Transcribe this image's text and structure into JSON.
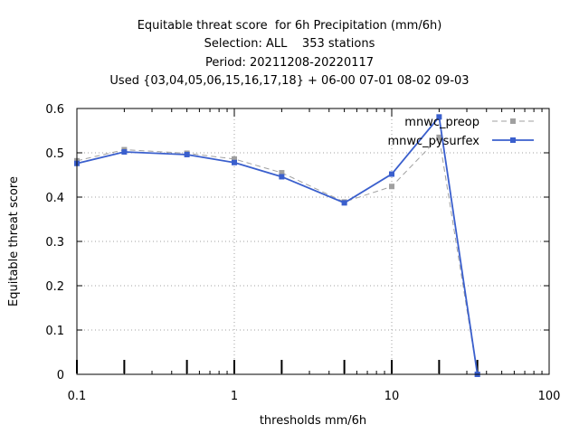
{
  "chart_data": {
    "type": "line",
    "title": [
      "Equitable threat score  for 6h Precipitation (mm/6h)",
      "Selection: ALL    353 stations",
      "Period: 20211208-20220117",
      "Used {03,04,05,06,15,16,17,18} + 06-00 07-01 08-02 09-03"
    ],
    "xlabel": "thresholds mm/6h",
    "ylabel": "Equitable threat score",
    "xscale": "log",
    "xlim": [
      0.1,
      100
    ],
    "ylim": [
      0,
      0.6
    ],
    "xticks": [
      0.1,
      1,
      10,
      100
    ],
    "xtick_labels": [
      "0.1",
      "1",
      "10",
      "100"
    ],
    "yticks": [
      0,
      0.1,
      0.2,
      0.3,
      0.4,
      0.5,
      0.6
    ],
    "ytick_labels": [
      "0",
      "0.1",
      "0.2",
      "0.3",
      "0.4",
      "0.5",
      "0.6"
    ],
    "threshold_marks": [
      0.1,
      0.2,
      0.5,
      1,
      2,
      5,
      10,
      20,
      35
    ],
    "grid": true,
    "legend_position": "top-right",
    "x": [
      0.1,
      0.2,
      0.5,
      1,
      2,
      5,
      10,
      20,
      35
    ],
    "series": [
      {
        "name": "mnwc_preop",
        "values": [
          0.482,
          0.507,
          0.499,
          0.486,
          0.455,
          0.389,
          0.424,
          0.535,
          0.0
        ],
        "color": "#a0a0a0",
        "style": "dashed"
      },
      {
        "name": "mnwc_pysurfex",
        "values": [
          0.476,
          0.502,
          0.496,
          0.478,
          0.446,
          0.387,
          0.452,
          0.581,
          0.0
        ],
        "color": "#3a5fcd",
        "style": "solid"
      }
    ]
  }
}
